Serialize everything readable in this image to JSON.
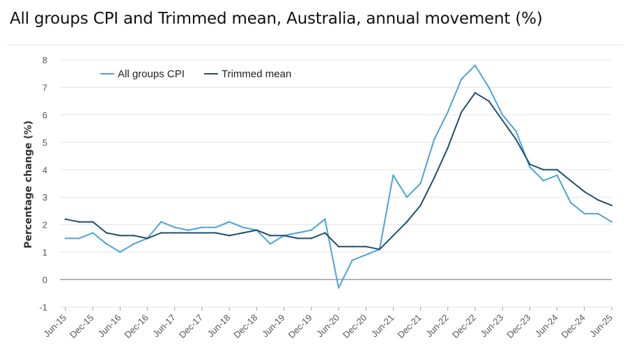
{
  "chart_data": {
    "type": "line",
    "title": "All groups CPI and Trimmed mean, Australia, annual movement (%)",
    "ylabel": "Percentage change (%)",
    "xlabel": "",
    "ylim": [
      -1,
      8
    ],
    "yticks": [
      "-1",
      "0",
      "1",
      "2",
      "3",
      "4",
      "5",
      "6",
      "7",
      "8"
    ],
    "grid": true,
    "legend_position": "top-left",
    "x": [
      "Jun-15",
      "Sep-15",
      "Dec-15",
      "Mar-16",
      "Jun-16",
      "Sep-16",
      "Dec-16",
      "Mar-17",
      "Jun-17",
      "Sep-17",
      "Dec-17",
      "Mar-18",
      "Jun-18",
      "Sep-18",
      "Dec-18",
      "Mar-19",
      "Jun-19",
      "Sep-19",
      "Dec-19",
      "Mar-20",
      "Jun-20",
      "Sep-20",
      "Dec-20",
      "Mar-21",
      "Jun-21",
      "Sep-21",
      "Dec-21",
      "Mar-22",
      "Jun-22",
      "Sep-22",
      "Dec-22",
      "Mar-23",
      "Jun-23",
      "Sep-23",
      "Dec-23",
      "Mar-24",
      "Jun-24",
      "Sep-24",
      "Dec-24",
      "Mar-25",
      "Jun-25"
    ],
    "xtick_labels": [
      "Jun-15",
      "Dec-15",
      "Jun-16",
      "Dec-16",
      "Jun-17",
      "Dec-17",
      "Jun-18",
      "Dec-18",
      "Jun-19",
      "Dec-19",
      "Jun-20",
      "Dec-20",
      "Jun-21",
      "Dec-21",
      "Jun-22",
      "Dec-22",
      "Jun-23",
      "Dec-23",
      "Jun-24",
      "Dec-24",
      "Jun-25"
    ],
    "series": [
      {
        "name": "All groups CPI",
        "color": "#4aa3d8",
        "values": [
          1.5,
          1.5,
          1.7,
          1.3,
          1.0,
          1.3,
          1.5,
          2.1,
          1.9,
          1.8,
          1.9,
          1.9,
          2.1,
          1.9,
          1.8,
          1.3,
          1.6,
          1.7,
          1.8,
          2.2,
          -0.3,
          0.7,
          0.9,
          1.1,
          3.8,
          3.0,
          3.5,
          5.1,
          6.1,
          7.3,
          7.8,
          7.0,
          6.0,
          5.4,
          4.1,
          3.6,
          3.8,
          2.8,
          2.4,
          2.4,
          2.1
        ]
      },
      {
        "name": "Trimmed mean",
        "color": "#1f4e6e",
        "values": [
          2.2,
          2.1,
          2.1,
          1.7,
          1.6,
          1.6,
          1.5,
          1.7,
          1.7,
          1.7,
          1.7,
          1.7,
          1.6,
          1.7,
          1.8,
          1.6,
          1.6,
          1.5,
          1.5,
          1.7,
          1.2,
          1.2,
          1.2,
          1.1,
          1.6,
          2.1,
          2.7,
          3.7,
          4.8,
          6.1,
          6.8,
          6.5,
          5.8,
          5.1,
          4.2,
          4.0,
          4.0,
          3.6,
          3.2,
          2.9,
          2.7
        ]
      }
    ]
  }
}
